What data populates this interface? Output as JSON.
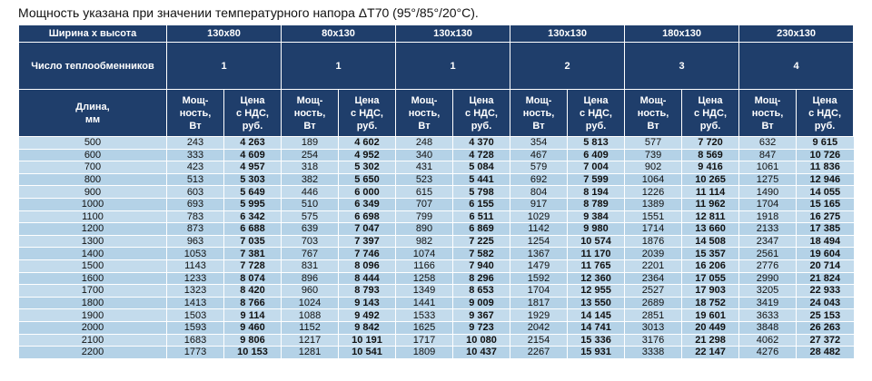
{
  "title": "Мощность указана при значении температурного напора ΔT70 (95°/85°/20°C).",
  "table": {
    "size_label": "Ширина х высота",
    "sizes": [
      "130x80",
      "80x130",
      "130x130",
      "130x130",
      "180x130",
      "230x130"
    ],
    "exchangers_label": "Число теплообменников",
    "exchangers": [
      "1",
      "1",
      "1",
      "2",
      "3",
      "4"
    ],
    "length_label": "Длина,\nмм",
    "power_label": "Мощ-\nность,\nВт",
    "price_label": "Цена\nс НДС,\nруб.",
    "rows": [
      [
        "500",
        "243",
        "4 263",
        "189",
        "4 602",
        "248",
        "4 370",
        "354",
        "5 813",
        "577",
        "7 720",
        "632",
        "9 615"
      ],
      [
        "600",
        "333",
        "4 609",
        "254",
        "4 952",
        "340",
        "4 728",
        "467",
        "6 409",
        "739",
        "8 569",
        "847",
        "10 726"
      ],
      [
        "700",
        "423",
        "4 957",
        "318",
        "5 302",
        "431",
        "5 084",
        "579",
        "7 004",
        "902",
        "9 416",
        "1061",
        "11 836"
      ],
      [
        "800",
        "513",
        "5 303",
        "382",
        "5 650",
        "523",
        "5 441",
        "692",
        "7 599",
        "1064",
        "10 265",
        "1275",
        "12 946"
      ],
      [
        "900",
        "603",
        "5 649",
        "446",
        "6 000",
        "615",
        "5 798",
        "804",
        "8 194",
        "1226",
        "11 114",
        "1490",
        "14 055"
      ],
      [
        "1000",
        "693",
        "5 995",
        "510",
        "6 349",
        "707",
        "6 155",
        "917",
        "8 789",
        "1389",
        "11 962",
        "1704",
        "15 165"
      ],
      [
        "1100",
        "783",
        "6 342",
        "575",
        "6 698",
        "799",
        "6 511",
        "1029",
        "9 384",
        "1551",
        "12 811",
        "1918",
        "16 275"
      ],
      [
        "1200",
        "873",
        "6 688",
        "639",
        "7 047",
        "890",
        "6 869",
        "1142",
        "9 980",
        "1714",
        "13 660",
        "2133",
        "17 385"
      ],
      [
        "1300",
        "963",
        "7 035",
        "703",
        "7 397",
        "982",
        "7 225",
        "1254",
        "10 574",
        "1876",
        "14 508",
        "2347",
        "18 494"
      ],
      [
        "1400",
        "1053",
        "7 381",
        "767",
        "7 746",
        "1074",
        "7 582",
        "1367",
        "11 170",
        "2039",
        "15 357",
        "2561",
        "19 604"
      ],
      [
        "1500",
        "1143",
        "7 728",
        "831",
        "8 096",
        "1166",
        "7 940",
        "1479",
        "11 765",
        "2201",
        "16 206",
        "2776",
        "20 714"
      ],
      [
        "1600",
        "1233",
        "8 074",
        "896",
        "8 444",
        "1258",
        "8 296",
        "1592",
        "12 360",
        "2364",
        "17 055",
        "2990",
        "21 824"
      ],
      [
        "1700",
        "1323",
        "8 420",
        "960",
        "8 793",
        "1349",
        "8 653",
        "1704",
        "12 955",
        "2527",
        "17 903",
        "3205",
        "22 933"
      ],
      [
        "1800",
        "1413",
        "8 766",
        "1024",
        "9 143",
        "1441",
        "9 009",
        "1817",
        "13 550",
        "2689",
        "18 752",
        "3419",
        "24 043"
      ],
      [
        "1900",
        "1503",
        "9 114",
        "1088",
        "9 492",
        "1533",
        "9 367",
        "1929",
        "14 145",
        "2851",
        "19 601",
        "3633",
        "25 153"
      ],
      [
        "2000",
        "1593",
        "9 460",
        "1152",
        "9 842",
        "1625",
        "9 723",
        "2042",
        "14 741",
        "3013",
        "20 449",
        "3848",
        "26 263"
      ],
      [
        "2100",
        "1683",
        "9 806",
        "1217",
        "10 191",
        "1717",
        "10 080",
        "2154",
        "15 336",
        "3176",
        "21 298",
        "4062",
        "27 372"
      ],
      [
        "2200",
        "1773",
        "10 153",
        "1281",
        "10 541",
        "1809",
        "10 437",
        "2267",
        "15 931",
        "3338",
        "22 147",
        "4276",
        "28 482"
      ]
    ]
  }
}
